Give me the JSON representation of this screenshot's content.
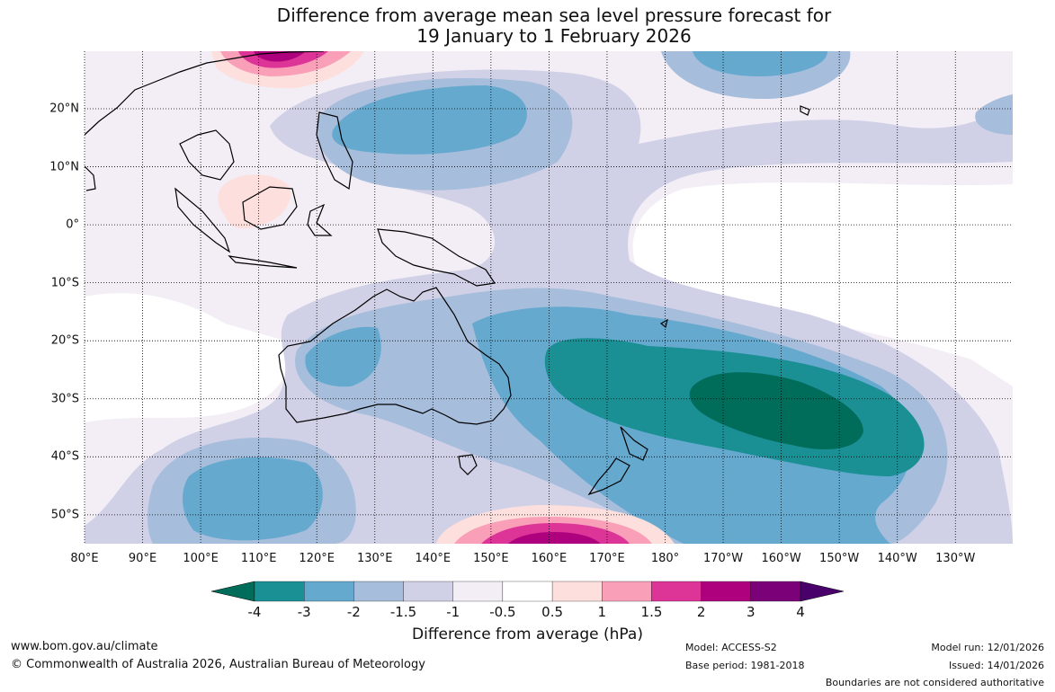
{
  "title": {
    "line1": "Difference from average mean sea level pressure forecast for",
    "line2": "19 January to 1 February 2026"
  },
  "map": {
    "lon_range_deg_east": [
      80,
      240
    ],
    "lat_range_deg": [
      -55,
      30
    ],
    "lon_ticks": [
      "80°E",
      "90°E",
      "100°E",
      "110°E",
      "120°E",
      "130°E",
      "140°E",
      "150°E",
      "160°E",
      "170°E",
      "180°",
      "170°W",
      "160°W",
      "150°W",
      "140°W",
      "130°W"
    ],
    "lat_ticks": [
      "20°N",
      "10°N",
      "0°",
      "10°S",
      "20°S",
      "30°S",
      "40°S",
      "50°S"
    ],
    "anomaly_regions": [
      {
        "region": "Tasman Sea / east of New Zealand",
        "min_hPa": -4,
        "max_hPa": -3
      },
      {
        "region": "Central Pacific around 20°S–40°S",
        "min_hPa": -3,
        "max_hPa": -2
      },
      {
        "region": "Western Australia interior",
        "min_hPa": -2,
        "max_hPa": -1.5
      },
      {
        "region": "South of Western Australia (45°S–55°S)",
        "min_hPa": -2,
        "max_hPa": -1.5
      },
      {
        "region": "Philippine Sea",
        "min_hPa": -2,
        "max_hPa": -1.5
      },
      {
        "region": "Southern China (north edge)",
        "min_hPa": 2,
        "max_hPa": 3
      },
      {
        "region": "South of New Zealand (50°S–55°S)",
        "min_hPa": 2,
        "max_hPa": 3
      },
      {
        "region": "Borneo",
        "min_hPa": 0.5,
        "max_hPa": 1
      }
    ]
  },
  "colorbar": {
    "title": "Difference from average (hPa)",
    "labels": [
      "-4",
      "-3",
      "-2",
      "-1.5",
      "-1",
      "-0.5",
      "0.5",
      "1",
      "1.5",
      "2",
      "3",
      "4"
    ],
    "colors": [
      "#006d5b",
      "#1a8f94",
      "#66a9cf",
      "#a6bddb",
      "#d0d1e6",
      "#f3eef6",
      "#ffffff",
      "#fde0dd",
      "#f99fb8",
      "#dd3497",
      "#ae017e",
      "#7a0177",
      "#49006a"
    ]
  },
  "footer": {
    "url": "www.bom.gov.au/climate",
    "copyright": "© Commonwealth of Australia 2026, Australian Bureau of Meteorology",
    "model": "Model: ACCESS-S2",
    "base_period": "Base period: 1981-2018",
    "model_run": "Model run: 12/01/2026",
    "issued": "Issued: 14/01/2026",
    "disclaimer": "Boundaries are not considered authoritative"
  }
}
